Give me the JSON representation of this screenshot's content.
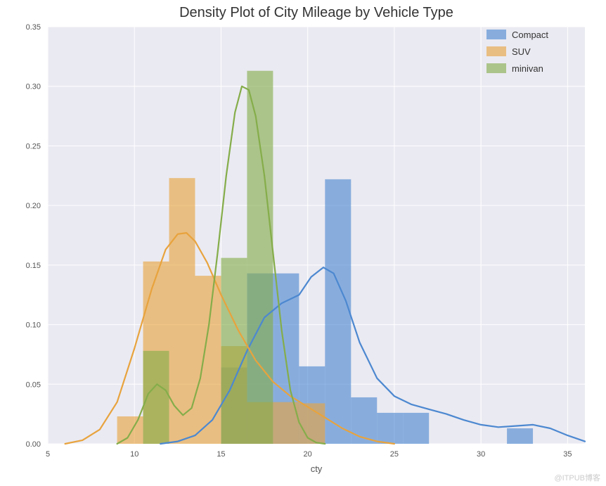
{
  "chart": {
    "type": "histogram_density",
    "title": "Density Plot of City Mileage by Vehicle Type",
    "title_fontsize": 20,
    "xlabel": "cty",
    "label_fontsize": 13,
    "tick_fontsize": 11,
    "background_color": "#ffffff",
    "plot_background_color": "#eaeaf2",
    "grid_color": "#ffffff",
    "xlim": [
      5,
      36
    ],
    "ylim": [
      0,
      0.35
    ],
    "xticks": [
      5,
      10,
      15,
      20,
      25,
      30,
      35
    ],
    "yticks": [
      0.0,
      0.05,
      0.1,
      0.15,
      0.2,
      0.25,
      0.3,
      0.35
    ],
    "xtick_labels": [
      "5",
      "10",
      "15",
      "20",
      "25",
      "30",
      "35"
    ],
    "ytick_labels": [
      "0.00",
      "0.05",
      "0.10",
      "0.15",
      "0.20",
      "0.25",
      "0.30",
      "0.35"
    ],
    "bar_opacity": 0.62,
    "line_width": 2.2,
    "legend": {
      "position": "upper-right",
      "items": [
        {
          "label": "Compact",
          "color": "#4c88d0"
        },
        {
          "label": "SUV",
          "color": "#e8a33d"
        },
        {
          "label": "minivan",
          "color": "#85ad4a"
        }
      ]
    },
    "series": [
      {
        "name": "Compact",
        "color": "#4c88d0",
        "bars": [
          {
            "x0": 15,
            "x1": 16.5,
            "y": 0.064
          },
          {
            "x0": 16.5,
            "x1": 18,
            "y": 0.143
          },
          {
            "x0": 18,
            "x1": 19.5,
            "y": 0.143
          },
          {
            "x0": 19.5,
            "x1": 21,
            "y": 0.065
          },
          {
            "x0": 21,
            "x1": 22.5,
            "y": 0.222
          },
          {
            "x0": 22.5,
            "x1": 24,
            "y": 0.039
          },
          {
            "x0": 24,
            "x1": 25.5,
            "y": 0.026
          },
          {
            "x0": 25.5,
            "x1": 27,
            "y": 0.026
          },
          {
            "x0": 31.5,
            "x1": 33,
            "y": 0.013
          }
        ],
        "kde": [
          [
            11.5,
            0.0
          ],
          [
            12.5,
            0.002
          ],
          [
            13.5,
            0.007
          ],
          [
            14.5,
            0.02
          ],
          [
            15.5,
            0.045
          ],
          [
            16.5,
            0.078
          ],
          [
            17.5,
            0.106
          ],
          [
            18.5,
            0.118
          ],
          [
            19.5,
            0.125
          ],
          [
            20.2,
            0.14
          ],
          [
            20.9,
            0.148
          ],
          [
            21.5,
            0.143
          ],
          [
            22.2,
            0.12
          ],
          [
            23.0,
            0.085
          ],
          [
            24.0,
            0.055
          ],
          [
            25.0,
            0.04
          ],
          [
            26.0,
            0.033
          ],
          [
            27.0,
            0.029
          ],
          [
            28.0,
            0.025
          ],
          [
            29.0,
            0.02
          ],
          [
            30.0,
            0.016
          ],
          [
            31.0,
            0.014
          ],
          [
            32.0,
            0.015
          ],
          [
            33.0,
            0.016
          ],
          [
            34.0,
            0.013
          ],
          [
            35.0,
            0.007
          ],
          [
            36.0,
            0.002
          ]
        ]
      },
      {
        "name": "SUV",
        "color": "#e8a33d",
        "bars": [
          {
            "x0": 9,
            "x1": 10.5,
            "y": 0.023
          },
          {
            "x0": 10.5,
            "x1": 12,
            "y": 0.153
          },
          {
            "x0": 12,
            "x1": 13.5,
            "y": 0.223
          },
          {
            "x0": 13.5,
            "x1": 15,
            "y": 0.141
          },
          {
            "x0": 15,
            "x1": 16.5,
            "y": 0.082
          },
          {
            "x0": 16.5,
            "x1": 18,
            "y": 0.035
          },
          {
            "x0": 18,
            "x1": 19.5,
            "y": 0.035
          },
          {
            "x0": 19.5,
            "x1": 21,
            "y": 0.034
          }
        ],
        "kde": [
          [
            6.0,
            0.0
          ],
          [
            7.0,
            0.003
          ],
          [
            8.0,
            0.012
          ],
          [
            9.0,
            0.035
          ],
          [
            10.0,
            0.08
          ],
          [
            11.0,
            0.13
          ],
          [
            11.8,
            0.163
          ],
          [
            12.5,
            0.176
          ],
          [
            13.0,
            0.177
          ],
          [
            13.5,
            0.17
          ],
          [
            14.2,
            0.152
          ],
          [
            15.0,
            0.125
          ],
          [
            16.0,
            0.095
          ],
          [
            17.0,
            0.07
          ],
          [
            18.0,
            0.052
          ],
          [
            19.0,
            0.04
          ],
          [
            20.0,
            0.031
          ],
          [
            21.0,
            0.022
          ],
          [
            22.0,
            0.013
          ],
          [
            23.0,
            0.006
          ],
          [
            24.0,
            0.002
          ],
          [
            25.0,
            0.0
          ]
        ]
      },
      {
        "name": "minivan",
        "color": "#85ad4a",
        "bars": [
          {
            "x0": 10.5,
            "x1": 12,
            "y": 0.078
          },
          {
            "x0": 15,
            "x1": 16.5,
            "y": 0.156
          },
          {
            "x0": 16.5,
            "x1": 18,
            "y": 0.313
          }
        ],
        "kde": [
          [
            9.0,
            0.0
          ],
          [
            9.6,
            0.005
          ],
          [
            10.2,
            0.02
          ],
          [
            10.8,
            0.042
          ],
          [
            11.3,
            0.05
          ],
          [
            11.8,
            0.045
          ],
          [
            12.3,
            0.032
          ],
          [
            12.8,
            0.024
          ],
          [
            13.3,
            0.03
          ],
          [
            13.8,
            0.055
          ],
          [
            14.3,
            0.1
          ],
          [
            14.8,
            0.16
          ],
          [
            15.3,
            0.225
          ],
          [
            15.8,
            0.278
          ],
          [
            16.2,
            0.3
          ],
          [
            16.6,
            0.297
          ],
          [
            17.0,
            0.275
          ],
          [
            17.5,
            0.225
          ],
          [
            18.0,
            0.16
          ],
          [
            18.5,
            0.095
          ],
          [
            19.0,
            0.045
          ],
          [
            19.5,
            0.018
          ],
          [
            20.0,
            0.005
          ],
          [
            20.5,
            0.001
          ],
          [
            21.0,
            0.0
          ]
        ]
      }
    ]
  },
  "watermark": "@ITPUB博客"
}
